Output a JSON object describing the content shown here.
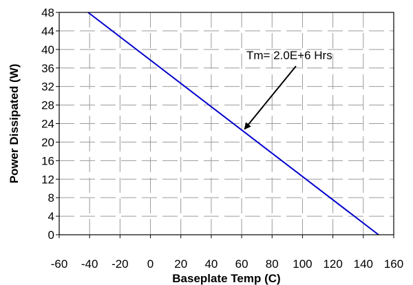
{
  "chart_data": {
    "type": "line",
    "title": "",
    "xlabel": "Baseplate Temp (C)",
    "ylabel": "Power Dissipated (W)",
    "xlim": [
      -60,
      160
    ],
    "ylim": [
      0,
      48
    ],
    "xticks": [
      -60,
      -40,
      -20,
      0,
      20,
      40,
      60,
      80,
      100,
      120,
      140,
      160
    ],
    "yticks": [
      0,
      4,
      8,
      12,
      16,
      20,
      24,
      28,
      32,
      36,
      40,
      44,
      48
    ],
    "grid": true,
    "series": [
      {
        "color": "#0000cc",
        "x": [
          -41,
          150
        ],
        "y": [
          48,
          0
        ]
      }
    ],
    "annotations": [
      {
        "text": "Tm= 2.0E+6 Hrs",
        "point_x": 61,
        "point_y": 22.5
      }
    ]
  }
}
